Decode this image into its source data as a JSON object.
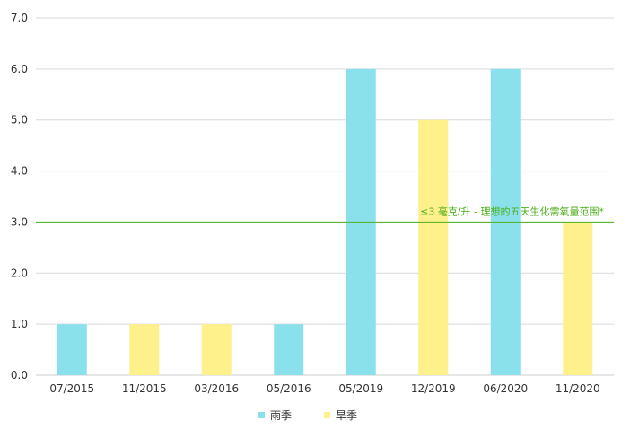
{
  "chart_data": {
    "type": "bar",
    "categories": [
      "07/2015",
      "11/2015",
      "03/2016",
      "05/2016",
      "05/2019",
      "12/2019",
      "06/2020",
      "11/2020"
    ],
    "values": [
      1.0,
      1.0,
      1.0,
      1.0,
      6.0,
      5.0,
      6.0,
      3.0
    ],
    "bar_series": [
      "雨季",
      "旱季",
      "旱季",
      "雨季",
      "雨季",
      "旱季",
      "雨季",
      "旱季"
    ],
    "series": [
      {
        "name": "雨季",
        "color": "#8ae1ec"
      },
      {
        "name": "旱季",
        "color": "#fef08a"
      }
    ],
    "ylim": [
      0,
      7
    ],
    "yticks": [
      "0.0",
      "1.0",
      "2.0",
      "3.0",
      "4.0",
      "5.0",
      "6.0",
      "7.0"
    ],
    "grid": true,
    "legend_position": "bottom-center",
    "reference_line": {
      "value": 3.0,
      "label": "≤3 毫克/升 - 理想的五天生化需氧量范围*",
      "color": "#4caf1a"
    },
    "grid_color": "#d9d9d9",
    "axis_color": "#cccccc"
  }
}
